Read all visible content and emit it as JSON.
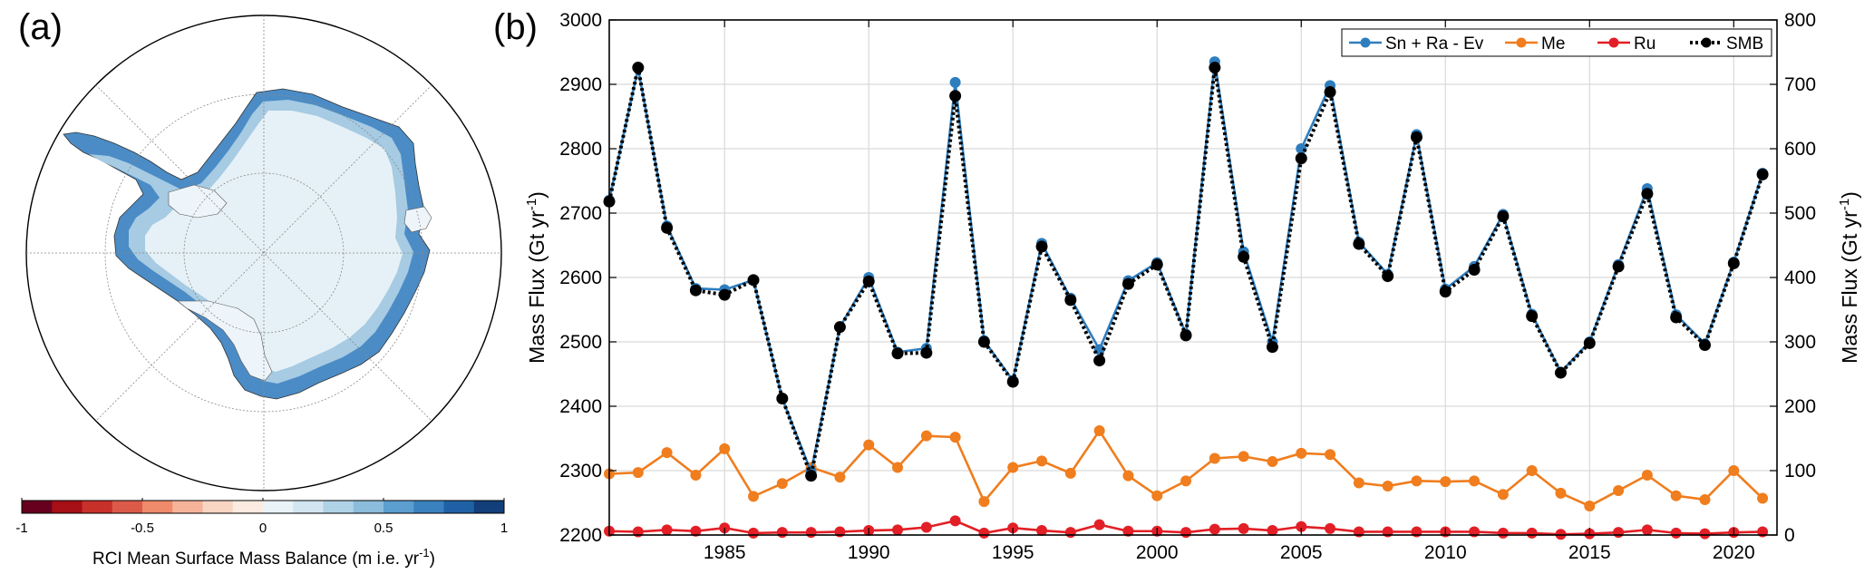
{
  "panel_a": {
    "label": "(a)",
    "colorbar": {
      "ticks": [
        "-1",
        "-0.5",
        "0",
        "0.5",
        "1"
      ],
      "tick_values": [
        -1,
        -0.5,
        0,
        0.5,
        1
      ],
      "range": [
        -1,
        1
      ],
      "colors": [
        "#67001f",
        "#a50f15",
        "#c8302a",
        "#dc5a4a",
        "#ef8a6b",
        "#f6b39a",
        "#f9d5c3",
        "#fcebe1",
        "#e9f3f8",
        "#d2e5f0",
        "#b0d2e6",
        "#8cbcdb",
        "#5c9ecf",
        "#3a82bf",
        "#1f61a4",
        "#123f7a"
      ],
      "label_prefix": "RCI Mean Surface Mass Balance (m i.e. yr",
      "label_exp": "-1",
      "label_suffix": ")"
    }
  },
  "panel_b": {
    "label": "(b)"
  },
  "chart_data": {
    "type": "line",
    "xlim": [
      1981,
      2021.5
    ],
    "x_ticks": [
      1985,
      1990,
      1995,
      2000,
      2005,
      2010,
      2015,
      2020
    ],
    "ylim_left": [
      2200,
      3000
    ],
    "ylim_right": [
      0,
      800
    ],
    "yticks_left": [
      2200,
      2300,
      2400,
      2500,
      2600,
      2700,
      2800,
      2900,
      3000
    ],
    "yticks_right": [
      0,
      100,
      200,
      300,
      400,
      500,
      600,
      700,
      800
    ],
    "ylabel_left": "Mass Flux (Gt yr",
    "ylabel_right": "Mass Flux (Gt yr",
    "ylabel_exp": "-1",
    "ylabel_suffix": ")",
    "grid": true,
    "legend_position": "top-right",
    "x": [
      1981,
      1982,
      1983,
      1984,
      1985,
      1986,
      1987,
      1988,
      1989,
      1990,
      1991,
      1992,
      1993,
      1994,
      1995,
      1996,
      1997,
      1998,
      1999,
      2000,
      2001,
      2002,
      2003,
      2004,
      2005,
      2006,
      2007,
      2008,
      2009,
      2010,
      2011,
      2012,
      2013,
      2014,
      2015,
      2016,
      2017,
      2018,
      2019,
      2020,
      2021
    ],
    "series": [
      {
        "name": "Sn + Ra - Ev",
        "axis": "left",
        "color": "#2e7ebf",
        "style": "solid",
        "values": [
          2720,
          2925,
          2680,
          2583,
          2581,
          2596,
          2412,
          2298,
          2523,
          2600,
          2484,
          2490,
          2903,
          2502,
          2440,
          2653,
          2568,
          2488,
          2595,
          2623,
          2512,
          2935,
          2640,
          2500,
          2800,
          2898,
          2655,
          2605,
          2822,
          2582,
          2617,
          2698,
          2543,
          2453,
          2500,
          2620,
          2738,
          2542,
          2497,
          2624,
          2762
        ]
      },
      {
        "name": "Me",
        "axis": "right",
        "color": "#f07d1e",
        "style": "solid",
        "values": [
          95,
          97,
          128,
          93,
          134,
          60,
          80,
          105,
          90,
          140,
          105,
          154,
          152,
          52,
          105,
          115,
          96,
          162,
          92,
          61,
          84,
          119,
          122,
          114,
          127,
          125,
          81,
          76,
          84,
          83,
          84,
          63,
          100,
          65,
          45,
          69,
          93,
          61,
          55,
          100,
          57
        ]
      },
      {
        "name": "Ru",
        "axis": "right",
        "color": "#e21f26",
        "style": "solid",
        "values": [
          6,
          5,
          8,
          6,
          11,
          3,
          4,
          4,
          5,
          7,
          8,
          12,
          22,
          3,
          11,
          7,
          4,
          16,
          6,
          6,
          4,
          9,
          10,
          7,
          13,
          10,
          5,
          5,
          5,
          5,
          5,
          3,
          3,
          1,
          2,
          4,
          8,
          3,
          2,
          4,
          5
        ]
      },
      {
        "name": "SMB",
        "axis": "left",
        "color": "#000000",
        "style": "dotted",
        "values": [
          2718,
          2926,
          2677,
          2580,
          2573,
          2596,
          2412,
          2292,
          2523,
          2594,
          2482,
          2483,
          2882,
          2500,
          2438,
          2648,
          2565,
          2471,
          2590,
          2620,
          2510,
          2926,
          2632,
          2492,
          2785,
          2888,
          2652,
          2602,
          2818,
          2578,
          2612,
          2695,
          2540,
          2452,
          2498,
          2617,
          2730,
          2538,
          2495,
          2622,
          2760
        ]
      }
    ]
  }
}
